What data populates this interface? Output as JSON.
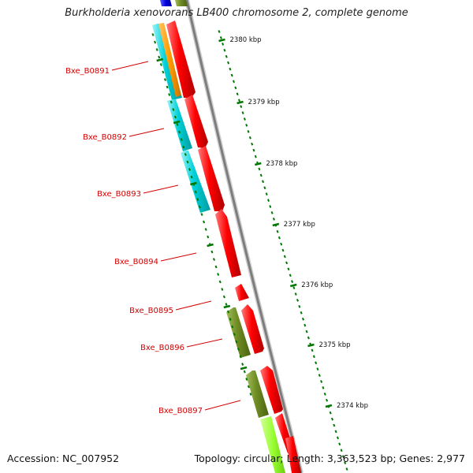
{
  "header": {
    "title": "Burkholderia xenovorans LB400 chromosome 2, complete genome"
  },
  "footer": {
    "accession": "Accession: NC_007952",
    "summary": "Topology: circular; Length: 3,363,523 bp; Genes: 2,977"
  },
  "colors": {
    "forward_strand": "#ff0000",
    "reverse_strand": "#00d0d8",
    "olive_genes": "#6f8c24",
    "orange_genes": "#ff9a00",
    "lime_genes": "#9aff33",
    "blue_genes": "#0000dd",
    "backbone": "#888888",
    "ticks": "#007700",
    "gene_labels": "#d40000"
  },
  "kbp_ticks": [
    "2380 kbp",
    "2379 kbp",
    "2378 kbp",
    "2377 kbp",
    "2376 kbp",
    "2375 kbp",
    "2374 kbp"
  ],
  "gene_labels": [
    "Bxe_B0891",
    "Bxe_B0892",
    "Bxe_B0893",
    "Bxe_B0894",
    "Bxe_B0895",
    "Bxe_B0896",
    "Bxe_B0897"
  ]
}
